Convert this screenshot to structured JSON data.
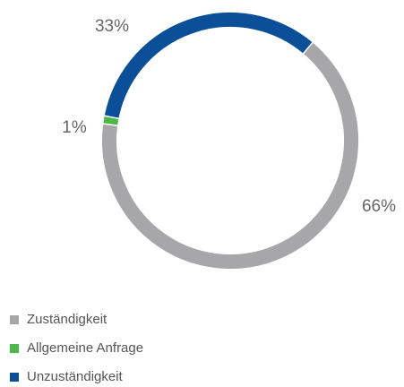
{
  "chart_data": {
    "type": "donut",
    "categories": [
      "Zuständigkeit",
      "Allgemeine Anfrage",
      "Unzuständigkeit"
    ],
    "values": [
      66,
      1,
      33
    ],
    "value_labels": [
      "66%",
      "1%",
      "33%"
    ],
    "colors": [
      "#a7a7a9",
      "#4db748",
      "#0a4f97"
    ],
    "legend": "bottom-left"
  }
}
